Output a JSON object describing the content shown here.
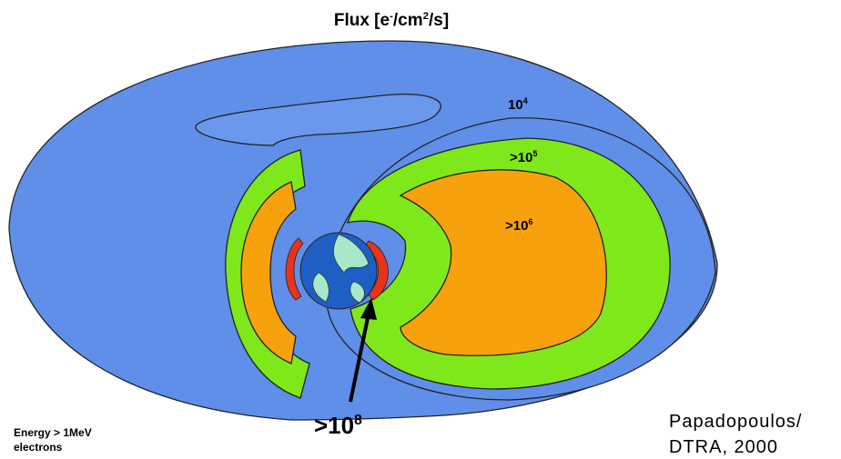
{
  "title": {
    "parts": [
      "Flux [e",
      "-",
      "/cm",
      "2",
      "/s]"
    ]
  },
  "labels": [
    {
      "base": "10",
      "exp": "4"
    },
    {
      "base": ">10",
      "exp": "5"
    },
    {
      "base": ">10",
      "exp": "6"
    },
    {
      "base": ">10",
      "exp": "8"
    }
  ],
  "note": [
    "Energy > 1MeV",
    "electrons"
  ],
  "credit": [
    "Papadopoulos/",
    "DTRA, 2000"
  ]
}
